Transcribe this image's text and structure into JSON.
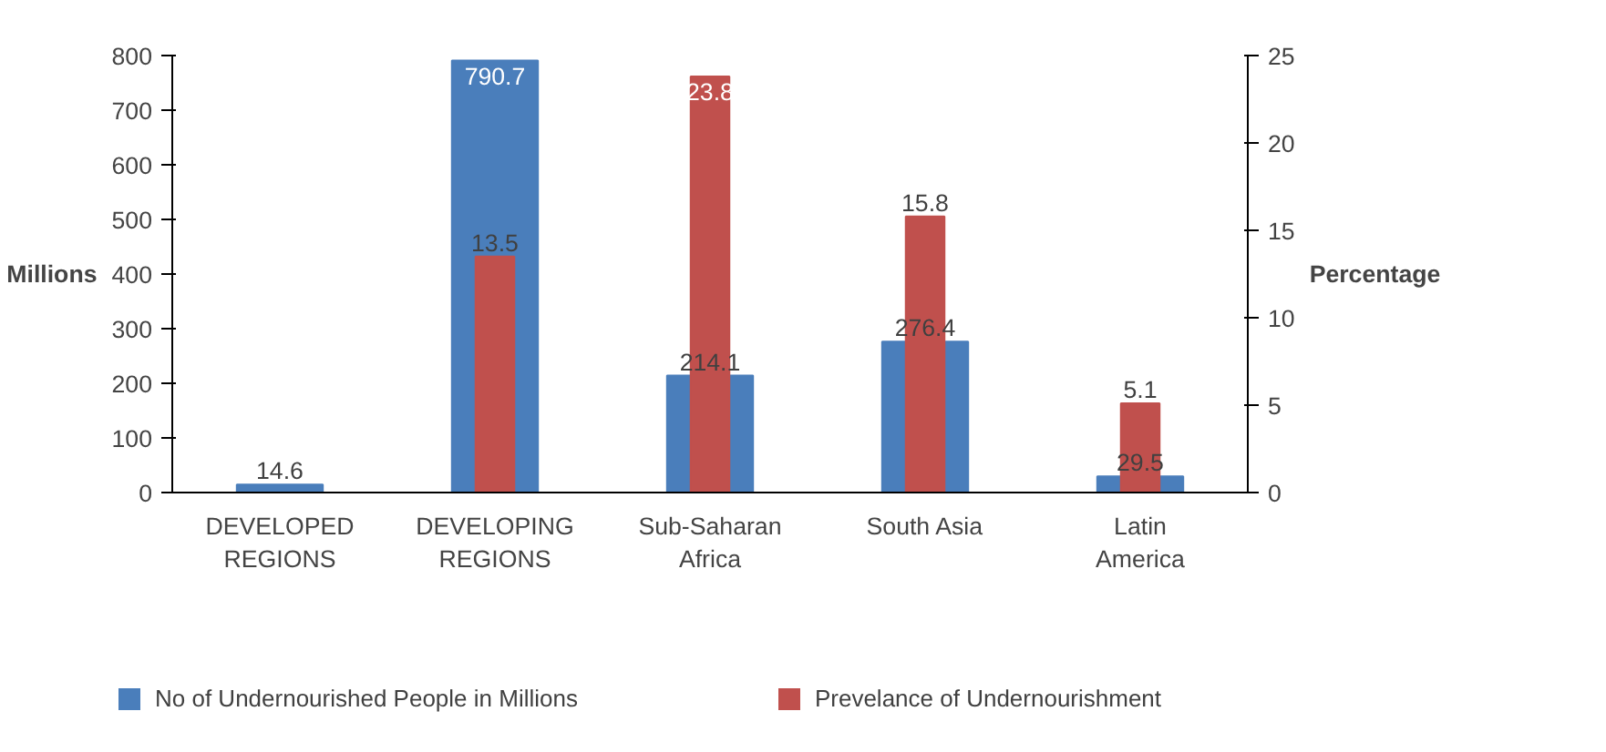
{
  "chart_data": {
    "type": "bar",
    "categories": [
      "DEVELOPED REGIONS",
      "DEVELOPING REGIONS",
      "Sub-Saharan Africa",
      "South Asia",
      "Latin America"
    ],
    "series": [
      {
        "name": "No of Undernourished People in Millions",
        "color": "#4a7ebb",
        "values": [
          14.6,
          790.7,
          214.1,
          276.4,
          29.5
        ]
      },
      {
        "name": "Prevelance of Undernourishment",
        "color": "#c0504d",
        "values": [
          null,
          13.5,
          23.8,
          15.8,
          5.1
        ],
        "axis": "y2"
      }
    ],
    "ylabel": "Millions",
    "y2label": "Percentage",
    "ylim": [
      0,
      800
    ],
    "yticks": [
      0,
      100,
      200,
      300,
      400,
      500,
      600,
      700,
      800
    ],
    "y2lim": [
      0,
      25
    ],
    "y2ticks": [
      0,
      5,
      10,
      15,
      20,
      25
    ],
    "data_labels": true,
    "grid": false,
    "legend": "bottom"
  }
}
